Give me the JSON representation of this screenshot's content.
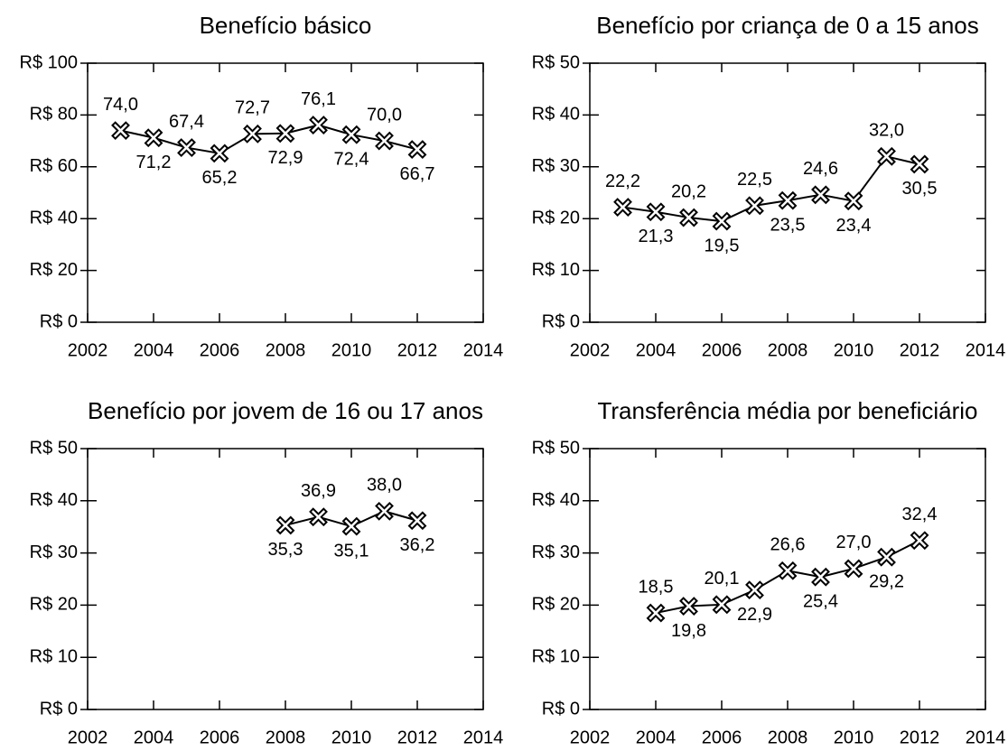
{
  "chart_data": [
    {
      "type": "line",
      "title": "Benefício básico",
      "x": [
        2003,
        2004,
        2005,
        2006,
        2007,
        2008,
        2009,
        2010,
        2011,
        2012
      ],
      "series": [
        {
          "color": "#000000",
          "values": [
            74.0,
            71.2,
            67.4,
            65.2,
            72.7,
            72.9,
            76.1,
            72.4,
            70.0,
            66.7
          ],
          "value_labels": [
            "74,0",
            "71,2",
            "67,4",
            "65,2",
            "72,7",
            "72,9",
            "76,1",
            "72,4",
            "70,0",
            "66,7"
          ]
        }
      ],
      "xlim": [
        2002,
        2014
      ],
      "xticks": [
        2002,
        2004,
        2006,
        2008,
        2010,
        2012,
        2014
      ],
      "ylim": [
        0,
        100
      ],
      "yticks": [
        {
          "value": 0,
          "label": "R$ 0"
        },
        {
          "value": 20,
          "label": "R$ 20"
        },
        {
          "value": 40,
          "label": "R$ 40"
        },
        {
          "value": 60,
          "label": "R$ 60"
        },
        {
          "value": 80,
          "label": "R$ 80"
        },
        {
          "value": 100,
          "label": "R$ 100"
        }
      ]
    },
    {
      "type": "line",
      "title": "Benefício por criança de 0 a 15 anos",
      "x": [
        2003,
        2004,
        2005,
        2006,
        2007,
        2008,
        2009,
        2010,
        2011,
        2012
      ],
      "series": [
        {
          "color": "#000000",
          "values": [
            22.2,
            21.3,
            20.2,
            19.5,
            22.5,
            23.5,
            24.6,
            23.4,
            32.0,
            30.5
          ],
          "value_labels": [
            "22,2",
            "21,3",
            "20,2",
            "19,5",
            "22,5",
            "23,5",
            "24,6",
            "23,4",
            "32,0",
            "30,5"
          ]
        }
      ],
      "xlim": [
        2002,
        2014
      ],
      "xticks": [
        2002,
        2004,
        2006,
        2008,
        2010,
        2012,
        2014
      ],
      "ylim": [
        0,
        50
      ],
      "yticks": [
        {
          "value": 0,
          "label": "R$ 0"
        },
        {
          "value": 10,
          "label": "R$ 10"
        },
        {
          "value": 20,
          "label": "R$ 20"
        },
        {
          "value": 30,
          "label": "R$ 30"
        },
        {
          "value": 40,
          "label": "R$ 40"
        },
        {
          "value": 50,
          "label": "R$ 50"
        }
      ]
    },
    {
      "type": "line",
      "title": "Benefício por jovem de 16 ou 17 anos",
      "x": [
        2008,
        2009,
        2010,
        2011,
        2012
      ],
      "series": [
        {
          "color": "#000000",
          "values": [
            35.3,
            36.9,
            35.1,
            38.0,
            36.2
          ],
          "value_labels": [
            "35,3",
            "36,9",
            "35,1",
            "38,0",
            "36,2"
          ]
        }
      ],
      "xlim": [
        2002,
        2014
      ],
      "xticks": [
        2002,
        2004,
        2006,
        2008,
        2010,
        2012,
        2014
      ],
      "ylim": [
        0,
        50
      ],
      "yticks": [
        {
          "value": 0,
          "label": "R$ 0"
        },
        {
          "value": 10,
          "label": "R$ 10"
        },
        {
          "value": 20,
          "label": "R$ 20"
        },
        {
          "value": 30,
          "label": "R$ 30"
        },
        {
          "value": 40,
          "label": "R$ 40"
        },
        {
          "value": 50,
          "label": "R$ 50"
        }
      ]
    },
    {
      "type": "line",
      "title": "Transferência média por beneficiário",
      "x": [
        2004,
        2005,
        2006,
        2007,
        2008,
        2009,
        2010,
        2011,
        2012
      ],
      "series": [
        {
          "color": "#000000",
          "values": [
            18.5,
            19.8,
            20.1,
            22.9,
            26.6,
            25.4,
            27.0,
            29.2,
            32.4
          ],
          "value_labels": [
            "18,5",
            "19,8",
            "20,1",
            "22,9",
            "26,6",
            "25,4",
            "27,0",
            "29,2",
            "32,4"
          ]
        }
      ],
      "xlim": [
        2002,
        2014
      ],
      "xticks": [
        2002,
        2004,
        2006,
        2008,
        2010,
        2012,
        2014
      ],
      "ylim": [
        0,
        50
      ],
      "yticks": [
        {
          "value": 0,
          "label": "R$ 0"
        },
        {
          "value": 10,
          "label": "R$ 10"
        },
        {
          "value": 20,
          "label": "R$ 20"
        },
        {
          "value": 30,
          "label": "R$ 30"
        },
        {
          "value": 40,
          "label": "R$ 40"
        },
        {
          "value": 50,
          "label": "R$ 50"
        }
      ]
    }
  ]
}
